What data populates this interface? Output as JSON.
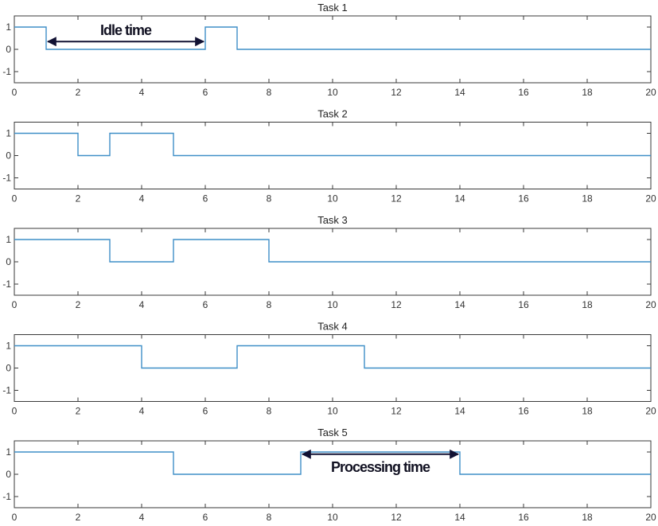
{
  "chart_data": [
    {
      "type": "line",
      "title": "Task 1",
      "step": "post",
      "x": [
        0,
        1,
        6,
        7,
        20
      ],
      "y": [
        1,
        0,
        1,
        0,
        0
      ],
      "xlim": [
        0,
        20
      ],
      "ylim": [
        -1.5,
        1.5
      ],
      "xticks": [
        0,
        2,
        4,
        6,
        8,
        10,
        12,
        14,
        16,
        18,
        20
      ],
      "yticks": [
        1,
        0,
        -1
      ],
      "annotation": {
        "text": "Idle time",
        "x_start": 1,
        "x_end": 6,
        "y": 0.35
      }
    },
    {
      "type": "line",
      "title": "Task 2",
      "step": "post",
      "x": [
        0,
        2,
        3,
        5,
        20
      ],
      "y": [
        1,
        0,
        1,
        0,
        0
      ],
      "xlim": [
        0,
        20
      ],
      "ylim": [
        -1.5,
        1.5
      ],
      "xticks": [
        0,
        2,
        4,
        6,
        8,
        10,
        12,
        14,
        16,
        18,
        20
      ],
      "yticks": [
        1,
        0,
        -1
      ]
    },
    {
      "type": "line",
      "title": "Task 3",
      "step": "post",
      "x": [
        0,
        3,
        5,
        8,
        20
      ],
      "y": [
        1,
        0,
        1,
        0,
        0
      ],
      "xlim": [
        0,
        20
      ],
      "ylim": [
        -1.5,
        1.5
      ],
      "xticks": [
        0,
        2,
        4,
        6,
        8,
        10,
        12,
        14,
        16,
        18,
        20
      ],
      "yticks": [
        1,
        0,
        -1
      ]
    },
    {
      "type": "line",
      "title": "Task 4",
      "step": "post",
      "x": [
        0,
        4,
        7,
        11,
        20
      ],
      "y": [
        1,
        0,
        1,
        0,
        0
      ],
      "xlim": [
        0,
        20
      ],
      "ylim": [
        -1.5,
        1.5
      ],
      "xticks": [
        0,
        2,
        4,
        6,
        8,
        10,
        12,
        14,
        16,
        18,
        20
      ],
      "yticks": [
        1,
        0,
        -1
      ]
    },
    {
      "type": "line",
      "title": "Task 5",
      "step": "post",
      "x": [
        0,
        5,
        9,
        14,
        20
      ],
      "y": [
        1,
        0,
        1,
        0,
        0
      ],
      "xlim": [
        0,
        20
      ],
      "ylim": [
        -1.5,
        1.5
      ],
      "xticks": [
        0,
        2,
        4,
        6,
        8,
        10,
        12,
        14,
        16,
        18,
        20
      ],
      "yticks": [
        1,
        0,
        -1
      ],
      "annotation": {
        "text": "Processing time",
        "x_start": 9,
        "x_end": 14,
        "y": 0.9
      }
    }
  ],
  "colors": {
    "signal": "#3f8fc7",
    "axis": "#3a3a3a",
    "grid": "#e8e8e8",
    "annotation": "#111133"
  }
}
